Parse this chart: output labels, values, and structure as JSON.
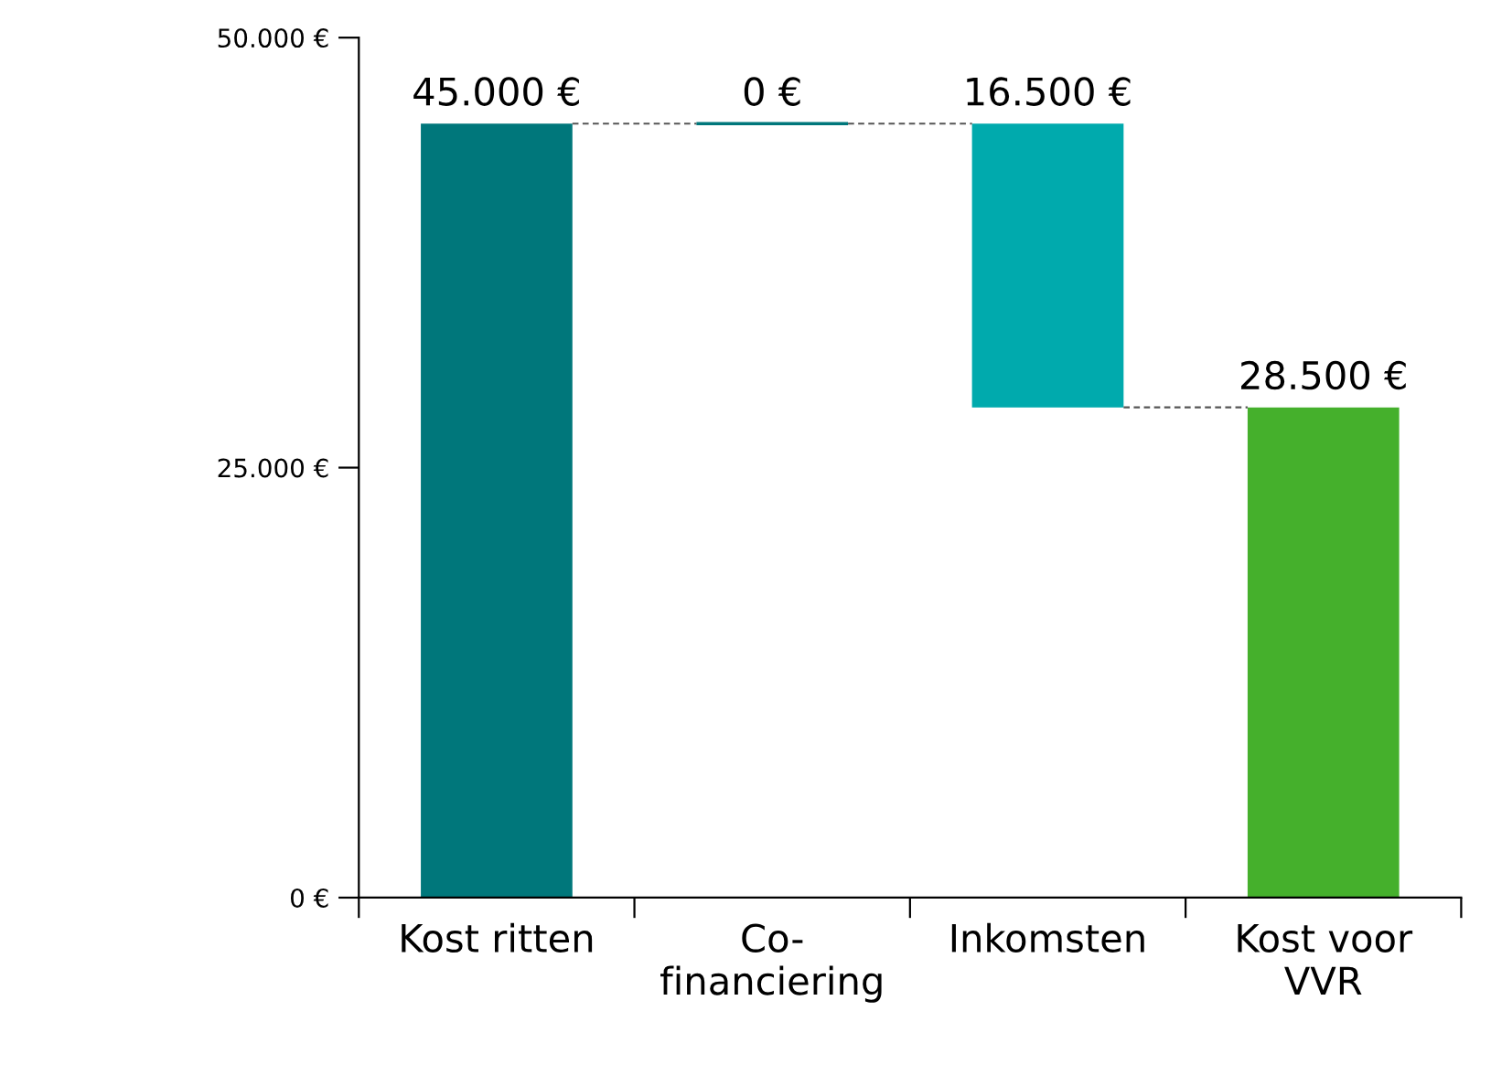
{
  "chart_data": {
    "type": "bar",
    "categories": [
      "Kost ritten",
      "Co-\nfinanciering",
      "Inkomsten",
      "Kost voor\nVVR"
    ],
    "values": [
      45000,
      0,
      -16500,
      28500
    ],
    "base": [
      0,
      45000,
      45000,
      0
    ],
    "colors": [
      "#00777b",
      "#00777b",
      "#00aaad",
      "#45b02c"
    ],
    "value_labels": [
      "45.000 €",
      "0 €",
      "16.500 €",
      "28.500 €"
    ],
    "ylim": [
      0,
      50000
    ],
    "yticks": [
      {
        "value": 0,
        "label": "0 €"
      },
      {
        "value": 25000,
        "label": "25.000 €"
      },
      {
        "value": 50000,
        "label": "50.000 €"
      }
    ],
    "grid": false,
    "legend": false
  }
}
